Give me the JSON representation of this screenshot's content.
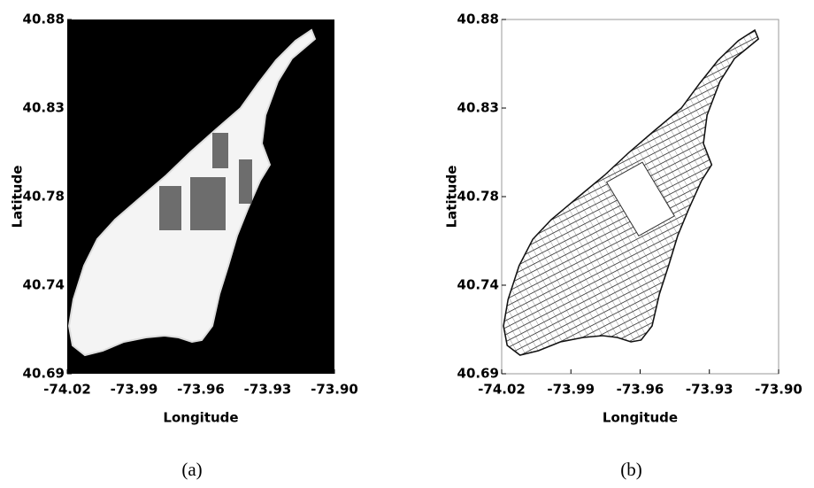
{
  "chart_data": [
    {
      "type": "map",
      "caption": "(a)",
      "xlabel": "Longitude",
      "ylabel": "Latitude",
      "xlim": [
        -74.02,
        -73.9
      ],
      "ylim": [
        40.69,
        40.88
      ],
      "xticks": [
        -74.02,
        -73.99,
        -73.96,
        -73.93,
        {
          "value": -73.9,
          "label": "-73.90"
        }
      ],
      "yticks": [
        40.69,
        {
          "value": 40.7375,
          "label": "40.74"
        },
        {
          "value": 40.785,
          "label": "40.78"
        },
        {
          "value": 40.8325,
          "label": "40.83"
        },
        40.88
      ]
    },
    {
      "type": "map",
      "caption": "(b)",
      "xlabel": "Longitude",
      "ylabel": "Latitude",
      "xlim": [
        -74.02,
        -73.9
      ],
      "ylim": [
        40.69,
        40.88
      ],
      "xticks": [
        -74.02,
        -73.99,
        -73.96,
        -73.93,
        {
          "value": -73.9,
          "label": "-73.90"
        }
      ],
      "yticks": [
        40.69,
        {
          "value": 40.7375,
          "label": "40.74"
        },
        {
          "value": 40.785,
          "label": "40.78"
        },
        {
          "value": 40.8325,
          "label": "40.83"
        },
        40.88
      ]
    }
  ]
}
